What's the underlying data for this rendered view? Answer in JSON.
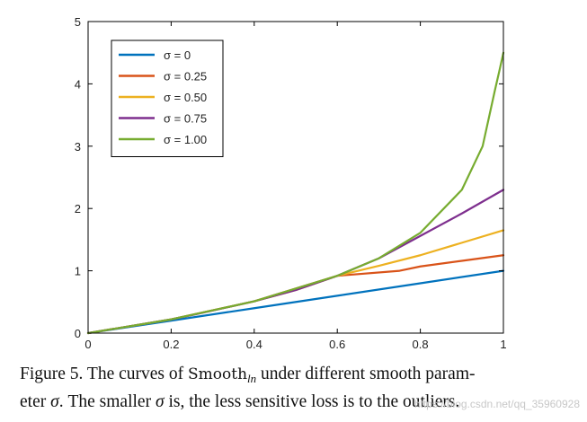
{
  "chart_data": {
    "type": "line",
    "title": "",
    "xlabel": "",
    "ylabel": "",
    "xlim": [
      0,
      1
    ],
    "ylim": [
      0,
      5
    ],
    "xticks": [
      "0",
      "0.2",
      "0.4",
      "0.6",
      "0.8",
      "1"
    ],
    "yticks": [
      "0",
      "1",
      "2",
      "3",
      "4",
      "5"
    ],
    "grid": false,
    "legend_position": "top-left",
    "series": [
      {
        "name": "σ = 0",
        "color": "#0072BD",
        "x": [
          0,
          0.2,
          0.4,
          0.6,
          0.8,
          1.0
        ],
        "y": [
          0,
          0.2,
          0.4,
          0.6,
          0.8,
          1.0
        ]
      },
      {
        "name": "σ = 0.25",
        "color": "#D95319",
        "x": [
          0,
          0.2,
          0.4,
          0.6,
          0.75,
          0.8,
          0.9,
          1.0
        ],
        "y": [
          0,
          0.22,
          0.51,
          0.92,
          1.0,
          1.07,
          1.16,
          1.25
        ]
      },
      {
        "name": "σ = 0.50",
        "color": "#EDB120",
        "x": [
          0,
          0.2,
          0.4,
          0.5,
          0.6,
          0.7,
          0.8,
          0.9,
          1.0
        ],
        "y": [
          0,
          0.22,
          0.51,
          0.69,
          0.92,
          1.08,
          1.25,
          1.45,
          1.65
        ]
      },
      {
        "name": "σ = 0.75",
        "color": "#7E2F8E",
        "x": [
          0,
          0.2,
          0.25,
          0.4,
          0.5,
          0.6,
          0.7,
          0.8,
          0.9,
          1.0
        ],
        "y": [
          0,
          0.22,
          0.29,
          0.51,
          0.69,
          0.92,
          1.2,
          1.56,
          1.92,
          2.3
        ]
      },
      {
        "name": "σ = 1.00",
        "color": "#77AC30",
        "x": [
          0,
          0.2,
          0.4,
          0.6,
          0.7,
          0.8,
          0.9,
          0.95,
          0.98,
          0.99,
          1.0
        ],
        "y": [
          0,
          0.22,
          0.51,
          0.92,
          1.2,
          1.61,
          2.3,
          3.0,
          3.91,
          4.2,
          4.5
        ]
      }
    ]
  },
  "caption": {
    "lead": "Figure 5. The curves of ",
    "math_name": "Smooth",
    "math_sub": "ln",
    "line1_rest": " under different smooth param-",
    "line2_start": "eter ",
    "sigma1": "σ",
    "line2_mid": ". The smaller ",
    "sigma2": "σ",
    "line2_end": " is, the less sensitive loss is to the outliers."
  },
  "watermark": "https://blog.csdn.net/qq_35960928"
}
